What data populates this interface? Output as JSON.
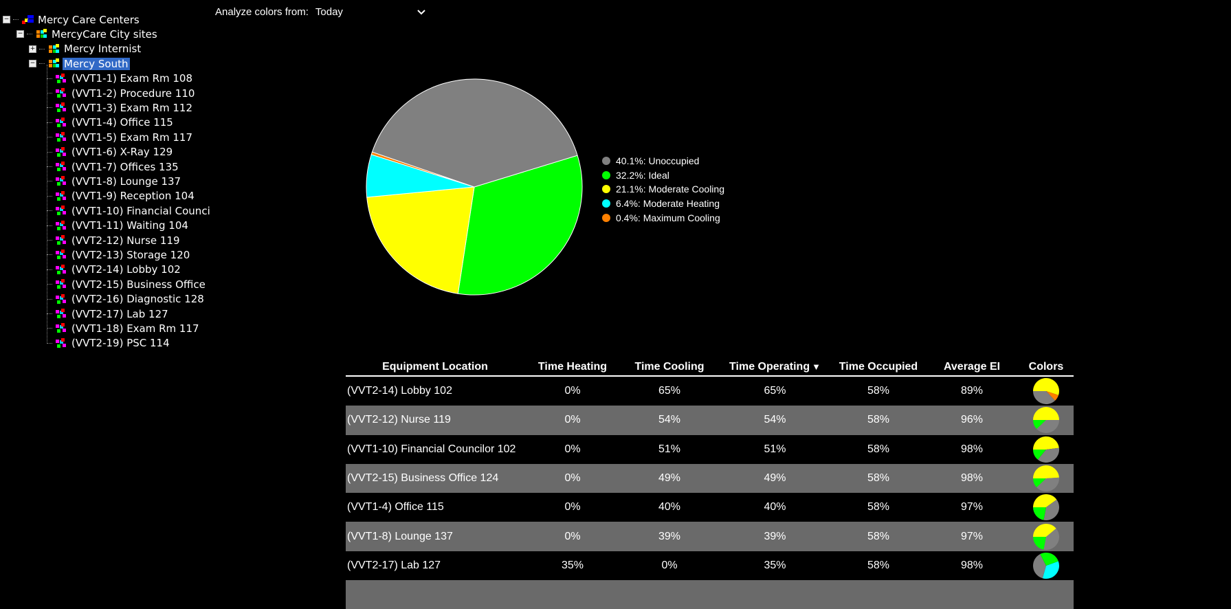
{
  "tree": {
    "root": "Mercy Care Centers",
    "group": "MercyCare City sites",
    "sites": [
      "Mercy Internist",
      "Mercy South"
    ],
    "selected": "Mercy South",
    "units": [
      "(VVT1-1) Exam Rm 108",
      "(VVT1-2) Procedure 110",
      "(VVT1-3) Exam Rm 112",
      "(VVT1-4) Office 115",
      "(VVT1-5) Exam Rm 117",
      "(VVT1-6) X-Ray 129",
      "(VVT1-7) Offices 135",
      "(VVT1-8) Lounge 137",
      "(VVT1-9) Reception 104",
      "(VVT1-10) Financial Counci",
      "(VVT1-11) Waiting 104",
      "(VVT2-12) Nurse 119",
      "(VVT2-13) Storage 120",
      "(VVT2-14) Lobby 102",
      "(VVT2-15) Business Office",
      "(VVT2-16) Diagnostic 128",
      "(VVT2-17) Lab 127",
      "(VVT1-18) Exam Rm 117",
      "(VVT2-19) PSC 114"
    ]
  },
  "analyze": {
    "label": "Analyze colors from:",
    "value": "Today"
  },
  "colors": {
    "Unoccupied": "#808080",
    "Ideal": "#00ff00",
    "Moderate Cooling": "#ffff00",
    "Moderate Heating": "#00ffff",
    "Maximum Cooling": "#ff8000"
  },
  "chart_data": {
    "type": "pie",
    "slices": [
      {
        "label": "Unoccupied",
        "value": 40.1,
        "text": "40.1%: Unoccupied"
      },
      {
        "label": "Ideal",
        "value": 32.2,
        "text": "32.2%: Ideal"
      },
      {
        "label": "Moderate Cooling",
        "value": 21.1,
        "text": "21.1%: Moderate Cooling"
      },
      {
        "label": "Moderate Heating",
        "value": 6.4,
        "text": "6.4%: Moderate Heating"
      },
      {
        "label": "Maximum Cooling",
        "value": 0.4,
        "text": "0.4%: Maximum Cooling"
      }
    ],
    "legend_position": "right"
  },
  "table": {
    "headers": [
      "Equipment Location",
      "Time Heating",
      "Time Cooling",
      "Time Operating",
      "Time Occupied",
      "Average EI",
      "Colors"
    ],
    "sort_indicator": "▼",
    "rows": [
      {
        "loc": "(VVT2-14) Lobby 102",
        "heat": "0%",
        "cool": "65%",
        "op": "65%",
        "occ": "58%",
        "ei": "89%",
        "mini": {
          "Moderate Cooling": 55,
          "Unoccupied": 37,
          "Maximum Cooling": 8
        }
      },
      {
        "loc": "(VVT2-12) Nurse 119",
        "heat": "0%",
        "cool": "54%",
        "op": "54%",
        "occ": "58%",
        "ei": "96%",
        "mini": {
          "Moderate Cooling": 50,
          "Unoccupied": 38,
          "Ideal": 12
        }
      },
      {
        "loc": "(VVT1-10) Financial Councilor 102",
        "heat": "0%",
        "cool": "51%",
        "op": "51%",
        "occ": "58%",
        "ei": "98%",
        "mini": {
          "Moderate Cooling": 48,
          "Unoccupied": 38,
          "Ideal": 14
        }
      },
      {
        "loc": "(VVT2-15) Business Office 124",
        "heat": "0%",
        "cool": "49%",
        "op": "49%",
        "occ": "58%",
        "ei": "98%",
        "mini": {
          "Moderate Cooling": 49,
          "Unoccupied": 39,
          "Ideal": 12
        }
      },
      {
        "loc": "(VVT1-4) Office 115",
        "heat": "0%",
        "cool": "40%",
        "op": "40%",
        "occ": "58%",
        "ei": "97%",
        "mini": {
          "Moderate Cooling": 40,
          "Unoccupied": 38,
          "Ideal": 22
        }
      },
      {
        "loc": "(VVT1-8) Lounge 137",
        "heat": "0%",
        "cool": "39%",
        "op": "39%",
        "occ": "58%",
        "ei": "97%",
        "mini": {
          "Moderate Cooling": 39,
          "Unoccupied": 39,
          "Ideal": 22
        }
      },
      {
        "loc": "(VVT2-17) Lab 127",
        "heat": "35%",
        "cool": "0%",
        "op": "35%",
        "occ": "58%",
        "ei": "98%",
        "mini": {
          "Moderate Heating": 35,
          "Unoccupied": 38,
          "Ideal": 27
        }
      }
    ]
  }
}
